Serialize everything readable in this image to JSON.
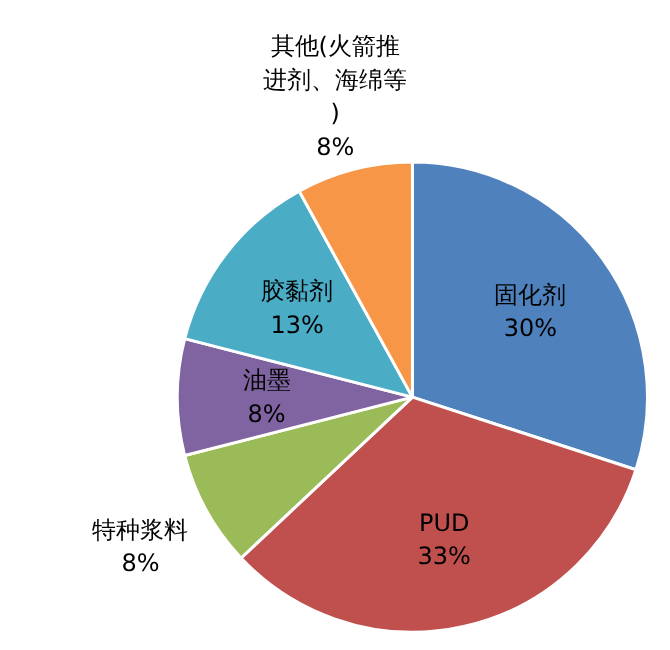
{
  "chart_data": {
    "type": "pie",
    "categories": [
      "固化剂",
      "PUD",
      "特种浆料",
      "油墨",
      "胶黏剂",
      "其他(火箭推进剂、海绵等)"
    ],
    "values": [
      30,
      33,
      8,
      8,
      13,
      8
    ],
    "value_labels": [
      "30%",
      "33%",
      "8%",
      "8%",
      "13%",
      "8%"
    ],
    "colors": [
      "#4f81bd",
      "#c0504d",
      "#9bbb59",
      "#8064a2",
      "#4bacc6",
      "#f79646"
    ]
  }
}
